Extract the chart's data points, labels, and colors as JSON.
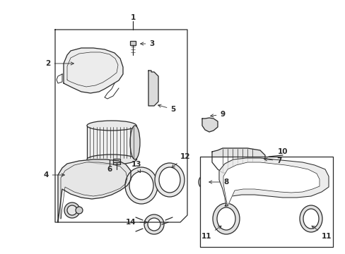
{
  "bg_color": "#ffffff",
  "line_color": "#2a2a2a",
  "fig_width": 4.89,
  "fig_height": 3.6,
  "dpi": 100,
  "font_size": 7.5
}
